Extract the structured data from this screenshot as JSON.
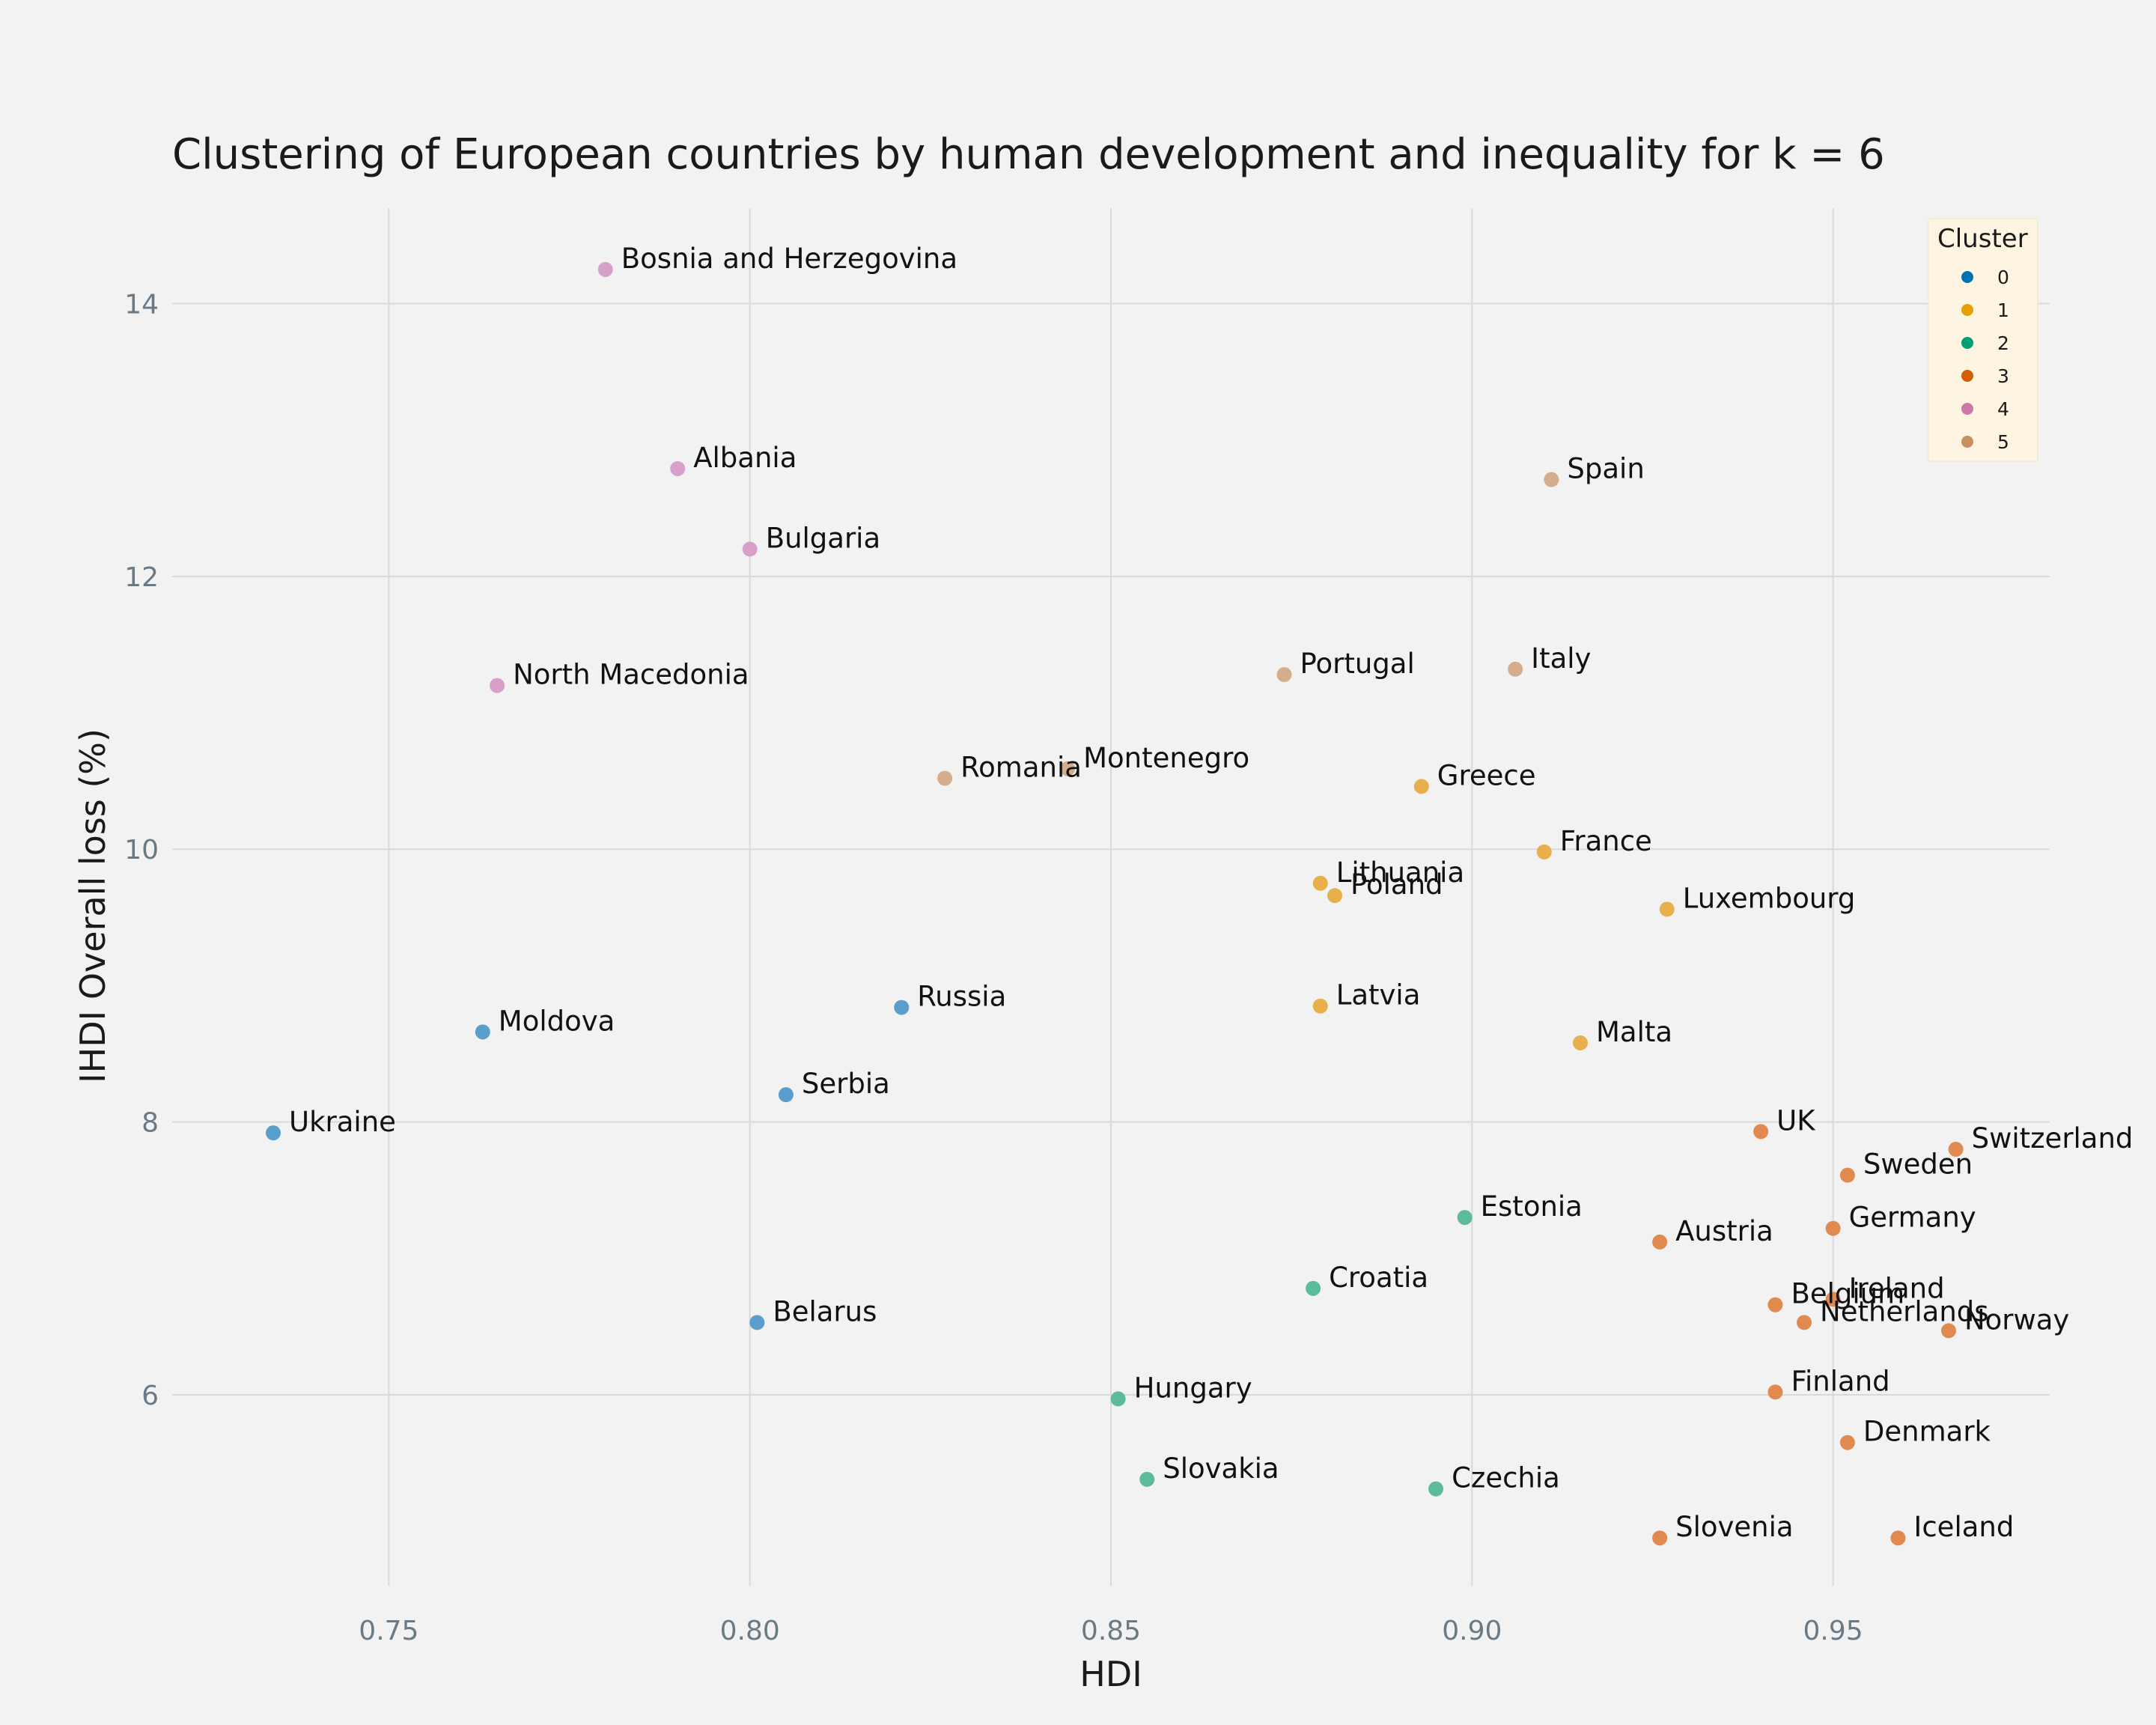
{
  "chart_data": {
    "type": "scatter",
    "title": "Clustering of European countries by human development and inequality for k = 6",
    "xlabel": "HDI",
    "ylabel": "IHDI Overall loss (%)",
    "xlim": [
      0.72,
      0.98
    ],
    "ylim": [
      4.6,
      14.7
    ],
    "xticks": [
      {
        "value": 0.75,
        "label": "0.75"
      },
      {
        "value": 0.8,
        "label": "0.80"
      },
      {
        "value": 0.85,
        "label": "0.85"
      },
      {
        "value": 0.9,
        "label": "0.90"
      },
      {
        "value": 0.95,
        "label": "0.95"
      }
    ],
    "yticks": [
      {
        "value": 6,
        "label": "6"
      },
      {
        "value": 8,
        "label": "8"
      },
      {
        "value": 10,
        "label": "10"
      },
      {
        "value": 12,
        "label": "12"
      },
      {
        "value": 14,
        "label": "14"
      }
    ],
    "grid": true,
    "legend": {
      "title": "Cluster",
      "placement": "top-right",
      "entries": [
        {
          "label": "0",
          "color": "#0072b2"
        },
        {
          "label": "1",
          "color": "#e69f00"
        },
        {
          "label": "2",
          "color": "#009e73"
        },
        {
          "label": "3",
          "color": "#d55e00"
        },
        {
          "label": "4",
          "color": "#cc79a7"
        },
        {
          "label": "5",
          "color": "#c89060"
        }
      ]
    },
    "point_colors": {
      "0": "#5a9fcc",
      "1": "#e8b04c",
      "2": "#5cbb9a",
      "3": "#e08a50",
      "4": "#d6a0cb",
      "5": "#d4ad8c"
    },
    "points": [
      {
        "label": "Bosnia and Herzegovina",
        "x": 0.78,
        "y": 14.25,
        "cluster": "4"
      },
      {
        "label": "Albania",
        "x": 0.79,
        "y": 12.79,
        "cluster": "4"
      },
      {
        "label": "Bulgaria",
        "x": 0.8,
        "y": 12.2,
        "cluster": "4"
      },
      {
        "label": "North Macedonia",
        "x": 0.765,
        "y": 11.2,
        "cluster": "4"
      },
      {
        "label": "Spain",
        "x": 0.911,
        "y": 12.71,
        "cluster": "5"
      },
      {
        "label": "Portugal",
        "x": 0.874,
        "y": 11.28,
        "cluster": "5"
      },
      {
        "label": "Italy",
        "x": 0.906,
        "y": 11.32,
        "cluster": "5"
      },
      {
        "label": "Romania",
        "x": 0.827,
        "y": 10.52,
        "cluster": "5"
      },
      {
        "label": "Montenegro",
        "x": 0.844,
        "y": 10.59,
        "cluster": "5"
      },
      {
        "label": "Greece",
        "x": 0.893,
        "y": 10.46,
        "cluster": "1"
      },
      {
        "label": "France",
        "x": 0.91,
        "y": 9.98,
        "cluster": "1"
      },
      {
        "label": "Lithuania",
        "x": 0.879,
        "y": 9.75,
        "cluster": "1"
      },
      {
        "label": "Poland",
        "x": 0.881,
        "y": 9.66,
        "cluster": "1"
      },
      {
        "label": "Luxembourg",
        "x": 0.927,
        "y": 9.56,
        "cluster": "1"
      },
      {
        "label": "Latvia",
        "x": 0.879,
        "y": 8.85,
        "cluster": "1"
      },
      {
        "label": "Malta",
        "x": 0.915,
        "y": 8.58,
        "cluster": "1"
      },
      {
        "label": "Russia",
        "x": 0.821,
        "y": 8.84,
        "cluster": "0"
      },
      {
        "label": "Moldova",
        "x": 0.763,
        "y": 8.66,
        "cluster": "0"
      },
      {
        "label": "Serbia",
        "x": 0.805,
        "y": 8.2,
        "cluster": "0"
      },
      {
        "label": "Ukraine",
        "x": 0.734,
        "y": 7.92,
        "cluster": "0"
      },
      {
        "label": "Belarus",
        "x": 0.801,
        "y": 6.53,
        "cluster": "0"
      },
      {
        "label": "Estonia",
        "x": 0.899,
        "y": 7.3,
        "cluster": "2"
      },
      {
        "label": "Croatia",
        "x": 0.878,
        "y": 6.78,
        "cluster": "2"
      },
      {
        "label": "Hungary",
        "x": 0.851,
        "y": 5.97,
        "cluster": "2"
      },
      {
        "label": "Slovakia",
        "x": 0.855,
        "y": 5.38,
        "cluster": "2"
      },
      {
        "label": "Czechia",
        "x": 0.895,
        "y": 5.31,
        "cluster": "2"
      },
      {
        "label": "UK",
        "x": 0.94,
        "y": 7.93,
        "cluster": "3"
      },
      {
        "label": "Switzerland",
        "x": 0.967,
        "y": 7.8,
        "cluster": "3"
      },
      {
        "label": "Sweden",
        "x": 0.952,
        "y": 7.61,
        "cluster": "3"
      },
      {
        "label": "Germany",
        "x": 0.95,
        "y": 7.22,
        "cluster": "3"
      },
      {
        "label": "Austria",
        "x": 0.926,
        "y": 7.12,
        "cluster": "3"
      },
      {
        "label": "Ireland",
        "x": 0.95,
        "y": 6.7,
        "cluster": "3"
      },
      {
        "label": "Belgium",
        "x": 0.942,
        "y": 6.66,
        "cluster": "3"
      },
      {
        "label": "Netherlands",
        "x": 0.946,
        "y": 6.53,
        "cluster": "3"
      },
      {
        "label": "Norway",
        "x": 0.966,
        "y": 6.47,
        "cluster": "3"
      },
      {
        "label": "Finland",
        "x": 0.942,
        "y": 6.02,
        "cluster": "3"
      },
      {
        "label": "Denmark",
        "x": 0.952,
        "y": 5.65,
        "cluster": "3"
      },
      {
        "label": "Slovenia",
        "x": 0.926,
        "y": 4.95,
        "cluster": "3"
      },
      {
        "label": "Iceland",
        "x": 0.959,
        "y": 4.95,
        "cluster": "3"
      }
    ]
  }
}
